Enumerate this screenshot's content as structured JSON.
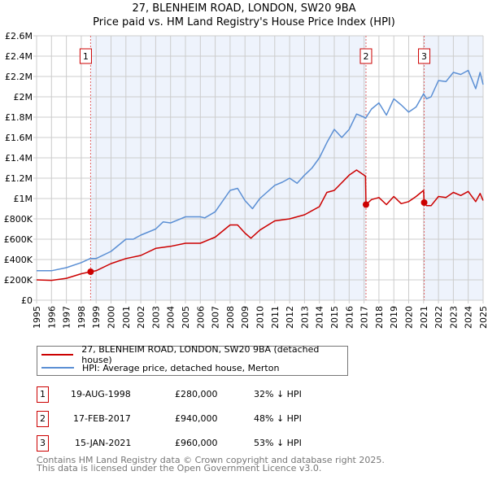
{
  "title": "27, BLENHEIM ROAD, LONDON, SW20 9BA",
  "subtitle": "Price paid vs. HM Land Registry's House Price Index (HPI)",
  "colors": {
    "property": "#cc0000",
    "hpi": "#5b8fd4",
    "shade": "#eef3fc",
    "grid": "#cccccc",
    "marker_line": "#e06666"
  },
  "chart_data": {
    "type": "line",
    "title": "27, BLENHEIM ROAD, LONDON, SW20 9BA",
    "xlim": [
      1995,
      2025
    ],
    "ylim": [
      0,
      2600000
    ],
    "grid": true,
    "x_ticks": [
      "1995",
      "1996",
      "1997",
      "1998",
      "1999",
      "2000",
      "2001",
      "2002",
      "2003",
      "2004",
      "2005",
      "2006",
      "2007",
      "2008",
      "2009",
      "2010",
      "2011",
      "2012",
      "2013",
      "2014",
      "2015",
      "2016",
      "2017",
      "2018",
      "2019",
      "2020",
      "2021",
      "2022",
      "2023",
      "2024",
      "2025"
    ],
    "y_ticks": [
      {
        "value": 0,
        "label": "£0"
      },
      {
        "value": 200000,
        "label": "£200K"
      },
      {
        "value": 400000,
        "label": "£400K"
      },
      {
        "value": 600000,
        "label": "£600K"
      },
      {
        "value": 800000,
        "label": "£800K"
      },
      {
        "value": 1000000,
        "label": "£1M"
      },
      {
        "value": 1200000,
        "label": "£1.2M"
      },
      {
        "value": 1400000,
        "label": "£1.4M"
      },
      {
        "value": 1600000,
        "label": "£1.6M"
      },
      {
        "value": 1800000,
        "label": "£1.8M"
      },
      {
        "value": 2000000,
        "label": "£2M"
      },
      {
        "value": 2200000,
        "label": "£2.2M"
      },
      {
        "value": 2400000,
        "label": "£2.4M"
      },
      {
        "value": 2600000,
        "label": "£2.6M"
      }
    ],
    "series": [
      {
        "name": "27, BLENHEIM ROAD, LONDON, SW20 9BA (detached house)",
        "color": "#cc0000",
        "x": [
          1995,
          1996,
          1997,
          1998,
          1998.63,
          1999,
          2000,
          2001,
          2002,
          2003,
          2003.5,
          2004,
          2005,
          2006,
          2007,
          2008,
          2008.5,
          2009,
          2009.4,
          2010,
          2011,
          2012,
          2013,
          2014,
          2014.5,
          2015,
          2016,
          2016.5,
          2017.1,
          2017.13,
          2017.5,
          2018,
          2018.5,
          2019,
          2019.5,
          2020,
          2020.5,
          2021,
          2021.04,
          2021.2,
          2021.5,
          2022,
          2022.5,
          2023,
          2023.5,
          2024,
          2024.5,
          2024.8,
          2025
        ],
        "values": [
          200,
          195,
          215,
          260,
          280,
          290,
          360,
          410,
          440,
          510,
          520,
          530,
          560,
          560,
          620,
          740,
          740,
          660,
          610,
          690,
          780,
          800,
          840,
          920,
          1060,
          1080,
          1230,
          1280,
          1220,
          940,
          990,
          1010,
          940,
          1020,
          950,
          970,
          1020,
          1080,
          960,
          930,
          930,
          1020,
          1010,
          1060,
          1030,
          1070,
          970,
          1050,
          980
        ]
      },
      {
        "name": "HPI: Average price, detached house, Merton",
        "color": "#5b8fd4",
        "x": [
          1995,
          1996,
          1997,
          1998,
          1998.6,
          1999,
          2000,
          2001,
          2001.5,
          2002,
          2003,
          2003.5,
          2004,
          2004.5,
          2005,
          2006,
          2006.3,
          2007,
          2008,
          2008.5,
          2009,
          2009.5,
          2010,
          2011,
          2011.5,
          2012,
          2012.5,
          2013,
          2013.5,
          2014,
          2014.5,
          2015,
          2015.5,
          2016,
          2016.5,
          2017,
          2017.1,
          2017.5,
          2018,
          2018.5,
          2019,
          2019.5,
          2020,
          2020.5,
          2021,
          2021.2,
          2021.5,
          2022,
          2022.5,
          2023,
          2023.5,
          2024,
          2024.5,
          2024.8,
          2025
        ],
        "values": [
          290,
          290,
          320,
          370,
          410,
          410,
          480,
          600,
          600,
          640,
          700,
          770,
          760,
          790,
          820,
          820,
          810,
          870,
          1080,
          1100,
          980,
          900,
          1000,
          1130,
          1160,
          1200,
          1150,
          1230,
          1300,
          1400,
          1550,
          1680,
          1600,
          1680,
          1830,
          1800,
          1790,
          1880,
          1940,
          1820,
          1980,
          1920,
          1850,
          1900,
          2030,
          1980,
          2000,
          2160,
          2150,
          2240,
          2220,
          2260,
          2080,
          2240,
          2120
        ]
      }
    ],
    "value_units": "thousands GBP",
    "sales": [
      {
        "label": "1",
        "x": 1998.63,
        "value": 280
      },
      {
        "label": "2",
        "x": 2017.13,
        "value": 940
      },
      {
        "label": "3",
        "x": 2021.04,
        "value": 960
      }
    ]
  },
  "legend": {
    "property": "27, BLENHEIM ROAD, LONDON, SW20 9BA (detached house)",
    "hpi": "HPI: Average price, detached house, Merton"
  },
  "transactions": [
    {
      "num": "1",
      "date": "19-AUG-1998",
      "price": "£280,000",
      "delta": "32% ↓ HPI"
    },
    {
      "num": "2",
      "date": "17-FEB-2017",
      "price": "£940,000",
      "delta": "48% ↓ HPI"
    },
    {
      "num": "3",
      "date": "15-JAN-2021",
      "price": "£960,000",
      "delta": "53% ↓ HPI"
    }
  ],
  "footer": {
    "line1": "Contains HM Land Registry data © Crown copyright and database right 2025.",
    "line2": "This data is licensed under the Open Government Licence v3.0."
  }
}
